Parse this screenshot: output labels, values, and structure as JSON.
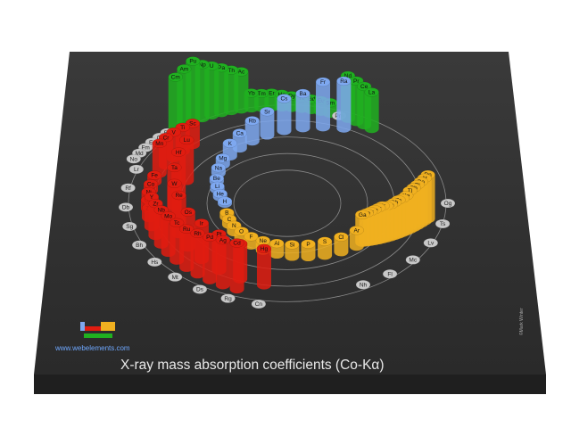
{
  "title": "X-ray mass absorption coefficients (Co-Kα)",
  "site": "www.webelements.com",
  "copyright": "©Mark Winter",
  "colors": {
    "s_block": "#7ea8f0",
    "p_block": "#f0b020",
    "d_block": "#e01c10",
    "f_block": "#20b020",
    "no_data": "#c8c8c8",
    "board": "#2f2f2f"
  },
  "chart_data": {
    "type": "bar",
    "layout": "radial spiral periodic table",
    "series": [
      {
        "block": "s",
        "elements": [
          {
            "symbol": "H",
            "value": 0.2
          },
          {
            "symbol": "He",
            "value": 0.3
          },
          {
            "symbol": "Li",
            "value": 0.3
          },
          {
            "symbol": "Be",
            "value": 0.3
          },
          {
            "symbol": "Na",
            "value": 0.5
          },
          {
            "symbol": "Mg",
            "value": 0.6
          },
          {
            "symbol": "K",
            "value": 1.2
          },
          {
            "symbol": "Ca",
            "value": 1.4
          },
          {
            "symbol": "Rb",
            "value": 1.9
          },
          {
            "symbol": "Sr",
            "value": 2.2
          },
          {
            "symbol": "Cs",
            "value": 3.0
          },
          {
            "symbol": "Ba",
            "value": 3.2
          },
          {
            "symbol": "Fr",
            "value": 4.2
          },
          {
            "symbol": "Ra",
            "value": 4.4
          }
        ]
      },
      {
        "block": "p",
        "elements": [
          {
            "symbol": "B",
            "value": 0.4
          },
          {
            "symbol": "C",
            "value": 0.5
          },
          {
            "symbol": "N",
            "value": 0.6
          },
          {
            "symbol": "O",
            "value": 0.7
          },
          {
            "symbol": "F",
            "value": 0.8
          },
          {
            "symbol": "Ne",
            "value": 0.9
          },
          {
            "symbol": "Al",
            "value": 1.0
          },
          {
            "symbol": "Si",
            "value": 1.1
          },
          {
            "symbol": "P",
            "value": 1.2
          },
          {
            "symbol": "S",
            "value": 1.3
          },
          {
            "symbol": "Cl",
            "value": 1.4
          },
          {
            "symbol": "Ar",
            "value": 1.5
          },
          {
            "symbol": "Ga",
            "value": 2.6
          },
          {
            "symbol": "Ge",
            "value": 2.7
          },
          {
            "symbol": "As",
            "value": 2.8
          },
          {
            "symbol": "Se",
            "value": 2.9
          },
          {
            "symbol": "Br",
            "value": 3.0
          },
          {
            "symbol": "Kr",
            "value": 3.1
          },
          {
            "symbol": "In",
            "value": 3.0
          },
          {
            "symbol": "Sn",
            "value": 3.0
          },
          {
            "symbol": "Sb",
            "value": 3.1
          },
          {
            "symbol": "Te",
            "value": 3.2
          },
          {
            "symbol": "I",
            "value": 3.2
          },
          {
            "symbol": "Xe",
            "value": 3.3
          },
          {
            "symbol": "Tl",
            "value": 3.6
          },
          {
            "symbol": "Pb",
            "value": 3.7
          },
          {
            "symbol": "Bi",
            "value": 3.8
          },
          {
            "symbol": "Po",
            "value": 3.9
          },
          {
            "symbol": "At",
            "value": 4.0
          },
          {
            "symbol": "Rn",
            "value": 4.1
          },
          {
            "symbol": "Nh",
            "value": null
          },
          {
            "symbol": "Fl",
            "value": null
          },
          {
            "symbol": "Mc",
            "value": null
          },
          {
            "symbol": "Lv",
            "value": null
          },
          {
            "symbol": "Ts",
            "value": null
          },
          {
            "symbol": "Og",
            "value": null
          }
        ]
      },
      {
        "block": "d",
        "elements": [
          {
            "symbol": "Sc",
            "value": 2.0
          },
          {
            "symbol": "Ti",
            "value": 2.2
          },
          {
            "symbol": "V",
            "value": 2.4
          },
          {
            "symbol": "Cr",
            "value": 2.6
          },
          {
            "symbol": "Mn",
            "value": 2.8
          },
          {
            "symbol": "Fe",
            "value": 0.6
          },
          {
            "symbol": "Co",
            "value": 0.6
          },
          {
            "symbol": "Ni",
            "value": 0.7
          },
          {
            "symbol": "Cu",
            "value": 0.8
          },
          {
            "symbol": "Zn",
            "value": 0.9
          },
          {
            "symbol": "Y",
            "value": 2.8
          },
          {
            "symbol": "Zr",
            "value": 3.0
          },
          {
            "symbol": "Nb",
            "value": 3.2
          },
          {
            "symbol": "Mo",
            "value": 3.4
          },
          {
            "symbol": "Tc",
            "value": 3.5
          },
          {
            "symbol": "Ru",
            "value": 3.6
          },
          {
            "symbol": "Rh",
            "value": 3.8
          },
          {
            "symbol": "Pd",
            "value": 4.0
          },
          {
            "symbol": "Ag",
            "value": 4.2
          },
          {
            "symbol": "Cd",
            "value": 4.3
          },
          {
            "symbol": "Lu",
            "value": 3.8
          },
          {
            "symbol": "Hf",
            "value": 3.8
          },
          {
            "symbol": "Ta",
            "value": 3.6
          },
          {
            "symbol": "W",
            "value": 3.4
          },
          {
            "symbol": "Re",
            "value": 3.6
          },
          {
            "symbol": "Os",
            "value": 3.3
          },
          {
            "symbol": "Ir",
            "value": 3.4
          },
          {
            "symbol": "Pt",
            "value": 3.4
          },
          {
            "symbol": "Au",
            "value": 3.3
          },
          {
            "symbol": "Hg",
            "value": 3.4
          },
          {
            "symbol": "Lr",
            "value": null
          },
          {
            "symbol": "Rf",
            "value": null
          },
          {
            "symbol": "Db",
            "value": null
          },
          {
            "symbol": "Sg",
            "value": null
          },
          {
            "symbol": "Bh",
            "value": null
          },
          {
            "symbol": "Hs",
            "value": null
          },
          {
            "symbol": "Mt",
            "value": null
          },
          {
            "symbol": "Ds",
            "value": null
          },
          {
            "symbol": "Rg",
            "value": null
          },
          {
            "symbol": "Cn",
            "value": null
          }
        ]
      },
      {
        "block": "f",
        "elements": [
          {
            "symbol": "La",
            "value": 3.4
          },
          {
            "symbol": "Ce",
            "value": 3.6
          },
          {
            "symbol": "Pr",
            "value": 3.8
          },
          {
            "symbol": "Nd",
            "value": 4.0
          },
          {
            "symbol": "Pm",
            "value": null
          },
          {
            "symbol": "Sm",
            "value": 1.0
          },
          {
            "symbol": "Eu",
            "value": 1.0
          },
          {
            "symbol": "Gd",
            "value": 1.0
          },
          {
            "symbol": "Tb",
            "value": 1.0
          },
          {
            "symbol": "Dy",
            "value": 1.1
          },
          {
            "symbol": "Ho",
            "value": 1.2
          },
          {
            "symbol": "Er",
            "value": 1.3
          },
          {
            "symbol": "Tm",
            "value": 1.3
          },
          {
            "symbol": "Yb",
            "value": 1.4
          },
          {
            "symbol": "Ac",
            "value": 3.5
          },
          {
            "symbol": "Th",
            "value": 3.8
          },
          {
            "symbol": "Pa",
            "value": 4.2
          },
          {
            "symbol": "U",
            "value": 4.6
          },
          {
            "symbol": "Np",
            "value": 5.0
          },
          {
            "symbol": "Pu",
            "value": 5.6
          },
          {
            "symbol": "Am",
            "value": 5.2
          },
          {
            "symbol": "Cm",
            "value": 4.8
          },
          {
            "symbol": "Bk",
            "value": null
          },
          {
            "symbol": "Cf",
            "value": null
          },
          {
            "symbol": "Es",
            "value": null
          },
          {
            "symbol": "Fm",
            "value": null
          },
          {
            "symbol": "Md",
            "value": null
          },
          {
            "symbol": "No",
            "value": null
          }
        ]
      }
    ]
  }
}
